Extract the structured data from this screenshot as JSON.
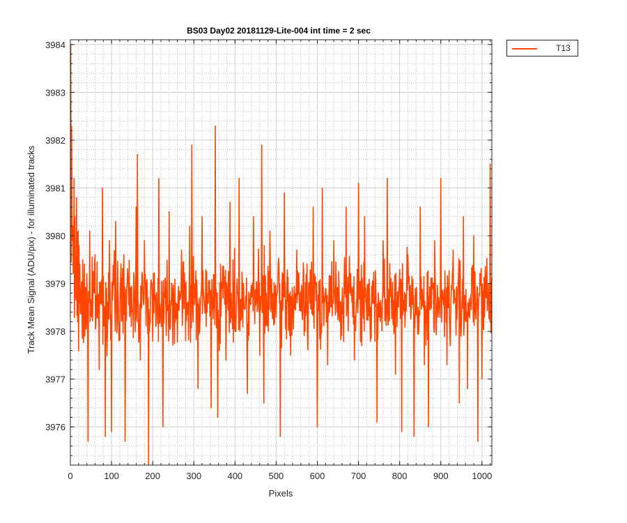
{
  "chart_data": {
    "type": "line",
    "title": "BS03 Day02 20181129-Lite-004 int time = 2 sec",
    "xlabel": "Pixels",
    "ylabel": "Track Mean Signal (ADU/pix) - for illuminated tracks",
    "xlim": [
      0,
      1024
    ],
    "ylim": [
      3975.2,
      3984.1
    ],
    "xticks": [
      0,
      100,
      200,
      300,
      400,
      500,
      600,
      700,
      800,
      900,
      1000
    ],
    "yticks": [
      3976,
      3977,
      3978,
      3979,
      3980,
      3981,
      3982,
      3983,
      3984
    ],
    "grid": "major solid, minor dotted",
    "legend_position": "outside-top-right",
    "series": [
      {
        "name": "T13",
        "color": "#ff4500",
        "mean": 3978.65,
        "points": [
          [
            1,
            3984.0
          ],
          [
            3,
            3982.3
          ],
          [
            6,
            3980.2
          ],
          [
            9,
            3981.2
          ],
          [
            12,
            3979.0
          ],
          [
            15,
            3980.8
          ],
          [
            18,
            3978.2
          ],
          [
            21,
            3979.8
          ],
          [
            25,
            3978.9
          ],
          [
            30,
            3979.5
          ],
          [
            35,
            3977.9
          ],
          [
            40,
            3979.2
          ],
          [
            43,
            3975.7
          ],
          [
            47,
            3980.1
          ],
          [
            52,
            3978.3
          ],
          [
            60,
            3979.6
          ],
          [
            70,
            3977.2
          ],
          [
            78,
            3981.0
          ],
          [
            85,
            3975.8
          ],
          [
            95,
            3979.9
          ],
          [
            100,
            3975.9
          ],
          [
            110,
            3980.3
          ],
          [
            118,
            3977.8
          ],
          [
            130,
            3979.6
          ],
          [
            133,
            3975.7
          ],
          [
            145,
            3978.4
          ],
          [
            160,
            3980.6
          ],
          [
            163,
            3981.7
          ],
          [
            170,
            3977.4
          ],
          [
            180,
            3979.9
          ],
          [
            190,
            3975.2
          ],
          [
            198,
            3979.0
          ],
          [
            208,
            3978.1
          ],
          [
            215,
            3981.2
          ],
          [
            225,
            3976.0
          ],
          [
            240,
            3980.5
          ],
          [
            255,
            3978.2
          ],
          [
            270,
            3979.7
          ],
          [
            280,
            3977.8
          ],
          [
            290,
            3980.2
          ],
          [
            295,
            3981.9
          ],
          [
            300,
            3978.7
          ],
          [
            310,
            3976.8
          ],
          [
            320,
            3980.4
          ],
          [
            330,
            3978.1
          ],
          [
            342,
            3976.4
          ],
          [
            352,
            3982.3
          ],
          [
            358,
            3976.2
          ],
          [
            365,
            3979.4
          ],
          [
            378,
            3977.4
          ],
          [
            388,
            3980.7
          ],
          [
            400,
            3978.0
          ],
          [
            410,
            3981.2
          ],
          [
            420,
            3979.0
          ],
          [
            430,
            3976.7
          ],
          [
            445,
            3980.4
          ],
          [
            460,
            3977.5
          ],
          [
            465,
            3981.9
          ],
          [
            470,
            3976.5
          ],
          [
            485,
            3980.1
          ],
          [
            500,
            3978.3
          ],
          [
            510,
            3975.8
          ],
          [
            520,
            3980.9
          ],
          [
            535,
            3977.5
          ],
          [
            550,
            3979.7
          ],
          [
            570,
            3978.0
          ],
          [
            590,
            3980.6
          ],
          [
            600,
            3976.0
          ],
          [
            612,
            3981.0
          ],
          [
            625,
            3977.3
          ],
          [
            640,
            3979.9
          ],
          [
            655,
            3978.2
          ],
          [
            670,
            3980.6
          ],
          [
            690,
            3977.4
          ],
          [
            700,
            3981.1
          ],
          [
            708,
            3977.7
          ],
          [
            715,
            3980.4
          ],
          [
            730,
            3978.5
          ],
          [
            745,
            3976.1
          ],
          [
            760,
            3979.9
          ],
          [
            770,
            3981.2
          ],
          [
            790,
            3977.1
          ],
          [
            805,
            3975.9
          ],
          [
            820,
            3979.6
          ],
          [
            835,
            3975.8
          ],
          [
            850,
            3980.6
          ],
          [
            860,
            3977.3
          ],
          [
            870,
            3976.0
          ],
          [
            885,
            3979.9
          ],
          [
            900,
            3981.2
          ],
          [
            915,
            3977.3
          ],
          [
            930,
            3979.7
          ],
          [
            945,
            3976.5
          ],
          [
            955,
            3980.4
          ],
          [
            965,
            3976.8
          ],
          [
            980,
            3980.0
          ],
          [
            990,
            3975.7
          ],
          [
            1000,
            3977.0
          ],
          [
            1010,
            3978.7
          ],
          [
            1020,
            3981.5
          ]
        ]
      }
    ]
  }
}
